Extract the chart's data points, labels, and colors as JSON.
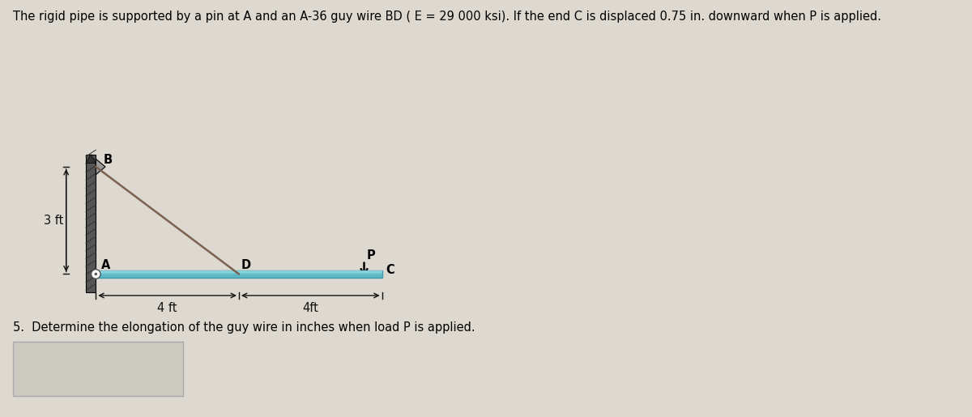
{
  "title": "The rigid pipe is supported by a pin at A and an A-36 guy wire BD ( E = 29 000 ksi). If the end C is displaced 0.75 in. downward when P is applied.",
  "question": "5.  Determine the elongation of the guy wire in inches when load P is applied.",
  "bg_color": "#ddd9d0",
  "A": [
    0.0,
    0.0
  ],
  "B": [
    0.0,
    3.0
  ],
  "D": [
    4.0,
    0.0
  ],
  "C": [
    8.0,
    0.0
  ],
  "pipe_color": "#6bc4cf",
  "pipe_highlight_color": "#9cdde6",
  "pipe_shadow_color": "#4aabb8",
  "pipe_edge_color": "#3a9aab",
  "wire_color": "#7a6050",
  "wall_color": "#555555",
  "wall_hatch_color": "#333333",
  "dim_color": "#111111",
  "label_fontsize": 10.5,
  "title_fontsize": 10.5,
  "question_fontsize": 10.5,
  "label_fontweight": "bold"
}
